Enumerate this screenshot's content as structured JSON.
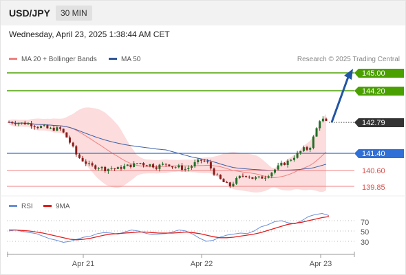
{
  "header": {
    "symbol": "USD/JPY",
    "timeframe": "30 MIN"
  },
  "timestamp": "Wednesday, April 23, 2025 1:38:44 AM CET",
  "legend": {
    "bollinger_label": "MA 20 + Bollinger Bands",
    "ma50_label": "MA 50",
    "rsi_label": "RSI",
    "rsi_ma_label": "9MA"
  },
  "credit": "Research © 2025 Trading Central",
  "colors": {
    "resistance": "#4aa000",
    "pivot": "#2f6fd6",
    "support": "#f08080",
    "current": "#333333",
    "candle_up": "#1f6e28",
    "candle_down": "#8b1c1c",
    "bollinger_fill": "#fbd3d3",
    "ma50": "#3b5fa8",
    "rsi": "#6a8fd8",
    "rsi_ma": "#e31b1b",
    "arrow": "#2255a4"
  },
  "levels": {
    "r2": "145.00",
    "r1": "144.20",
    "current": "142.79",
    "pivot": "141.40",
    "s1": "140.60",
    "s2": "139.85"
  },
  "rsi_ticks": [
    "70",
    "50",
    "30"
  ],
  "x_labels": [
    "Apr 21",
    "Apr 22",
    "Apr 23"
  ],
  "chart_data": [
    {
      "type": "candlestick",
      "title": "USD/JPY",
      "timeframe": "30 MIN",
      "y_range_approx": [
        139.7,
        145.3
      ],
      "x_ticks": [
        "Apr 21",
        "Apr 22",
        "Apr 23"
      ],
      "horizontal_levels": [
        {
          "value": 145.0,
          "role": "resistance"
        },
        {
          "value": 144.2,
          "role": "resistance"
        },
        {
          "value": 142.79,
          "role": "current"
        },
        {
          "value": 141.4,
          "role": "pivot"
        },
        {
          "value": 140.6,
          "role": "support"
        },
        {
          "value": 139.85,
          "role": "support"
        }
      ],
      "close_path_approx": [
        142.8,
        142.8,
        142.75,
        142.75,
        142.7,
        142.6,
        142.6,
        142.5,
        142.5,
        142.5,
        142.2,
        141.8,
        141.3,
        141.1,
        140.9,
        140.8,
        140.8,
        140.7,
        140.75,
        140.7,
        140.8,
        140.85,
        140.9,
        141.0,
        140.9,
        140.9,
        140.8,
        140.9,
        140.95,
        140.8,
        140.8,
        140.7,
        140.8,
        141.0,
        141.1,
        141.0,
        140.6,
        140.3,
        140.1,
        139.95,
        140.2,
        140.4,
        140.45,
        140.3,
        140.3,
        140.35,
        140.5,
        140.7,
        140.9,
        141.0,
        141.2,
        141.4,
        141.6,
        141.6,
        142.3,
        143.0,
        142.79
      ],
      "forecast": {
        "from": 142.79,
        "to": 145.0,
        "direction": "up"
      }
    },
    {
      "type": "line",
      "title": "RSI",
      "y_ticks": [
        70,
        50,
        30
      ],
      "series": [
        {
          "name": "RSI",
          "values": [
            50,
            52,
            49,
            47,
            45,
            40,
            35,
            32,
            28,
            30,
            34,
            38,
            40,
            45,
            47,
            46,
            44,
            48,
            52,
            50,
            46,
            43,
            44,
            45,
            48,
            52,
            50,
            44,
            36,
            30,
            32,
            38,
            42,
            44,
            46,
            45,
            50,
            58,
            62,
            68,
            70,
            66,
            64,
            70,
            78,
            82,
            84,
            80
          ]
        },
        {
          "name": "9MA",
          "values": [
            52,
            52,
            51,
            50,
            48,
            46,
            43,
            40,
            37,
            34,
            33,
            34,
            36,
            39,
            42,
            44,
            45,
            46,
            47,
            48,
            48,
            47,
            46,
            46,
            46,
            47,
            48,
            47,
            45,
            42,
            39,
            37,
            37,
            38,
            40,
            42,
            44,
            47,
            51,
            55,
            59,
            63,
            65,
            67,
            70,
            73,
            76,
            78
          ]
        }
      ]
    }
  ]
}
